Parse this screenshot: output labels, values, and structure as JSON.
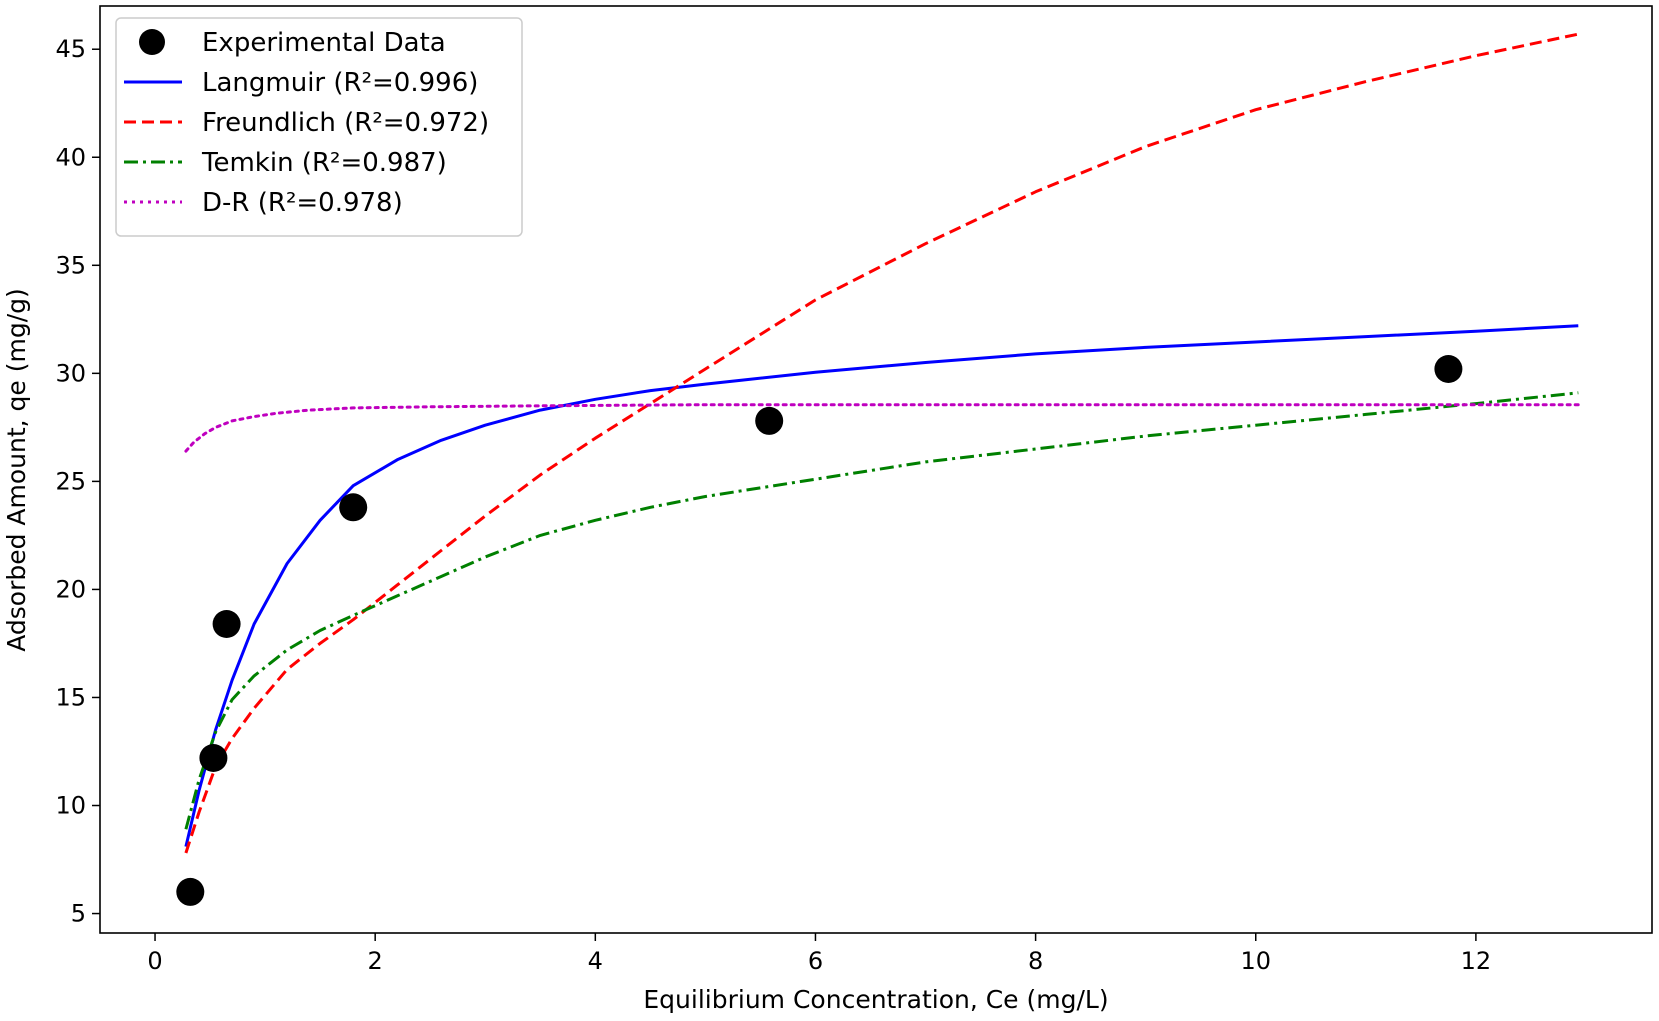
{
  "chart_data": {
    "type": "scatter",
    "title": "",
    "xlabel": "Equilibrium Concentration, Ce (mg/L)",
    "ylabel": "Adsorbed Amount, qe (mg/g)",
    "xlim": [
      -0.5,
      13.6
    ],
    "ylim": [
      4.1,
      47.0
    ],
    "xticks": [
      0,
      2,
      4,
      6,
      8,
      10,
      12
    ],
    "yticks": [
      5,
      10,
      15,
      20,
      25,
      30,
      35,
      40,
      45
    ],
    "grid": false,
    "legend_position": "upper-left",
    "scatter": {
      "name": "Experimental Data",
      "color": "#000000",
      "x": [
        0.32,
        0.53,
        0.65,
        1.8,
        5.58,
        11.75
      ],
      "y": [
        6.0,
        12.2,
        18.4,
        23.8,
        27.8,
        30.2
      ]
    },
    "series": [
      {
        "name": "Langmuir (R²=0.996)",
        "color": "#0000ff",
        "style": "solid",
        "x": [
          0.28,
          0.4,
          0.55,
          0.7,
          0.9,
          1.2,
          1.5,
          1.8,
          2.2,
          2.6,
          3.0,
          3.5,
          4.0,
          4.5,
          5.0,
          6.0,
          7.0,
          8.0,
          9.0,
          10.0,
          11.0,
          12.0,
          12.93
        ],
        "y": [
          8.1,
          10.7,
          13.5,
          15.8,
          18.4,
          21.2,
          23.2,
          24.8,
          26.0,
          26.9,
          27.6,
          28.3,
          28.8,
          29.2,
          29.5,
          30.05,
          30.5,
          30.9,
          31.2,
          31.45,
          31.7,
          31.95,
          32.2
        ]
      },
      {
        "name": "Freundlich (R²=0.972)",
        "color": "#ff0000",
        "style": "dashed",
        "x": [
          0.28,
          0.4,
          0.55,
          0.7,
          0.9,
          1.2,
          1.5,
          1.8,
          2.2,
          2.6,
          3.0,
          3.5,
          4.0,
          4.5,
          5.0,
          6.0,
          7.0,
          8.0,
          9.0,
          10.0,
          11.0,
          12.0,
          12.93
        ],
        "y": [
          7.8,
          9.7,
          11.8,
          13.1,
          14.5,
          16.3,
          17.5,
          18.6,
          20.2,
          21.8,
          23.4,
          25.3,
          27.0,
          28.6,
          30.2,
          33.4,
          36.0,
          38.4,
          40.5,
          42.2,
          43.5,
          44.7,
          45.7
        ]
      },
      {
        "name": "Temkin (R²=0.987)",
        "color": "#008000",
        "style": "dashdot",
        "x": [
          0.28,
          0.4,
          0.55,
          0.7,
          0.9,
          1.2,
          1.5,
          1.8,
          2.2,
          2.6,
          3.0,
          3.5,
          4.0,
          4.5,
          5.0,
          6.0,
          7.0,
          8.0,
          9.0,
          10.0,
          11.0,
          12.0,
          12.93
        ],
        "y": [
          8.9,
          11.2,
          13.4,
          14.9,
          16.0,
          17.2,
          18.1,
          18.8,
          19.7,
          20.6,
          21.5,
          22.5,
          23.2,
          23.8,
          24.3,
          25.1,
          25.9,
          26.5,
          27.1,
          27.6,
          28.1,
          28.6,
          29.1
        ]
      },
      {
        "name": "D-R (R²=0.978)",
        "color": "#bf00bf",
        "style": "dotted",
        "x": [
          0.28,
          0.35,
          0.45,
          0.55,
          0.7,
          0.9,
          1.1,
          1.4,
          1.8,
          2.5,
          3.5,
          5.0,
          7.0,
          9.0,
          11.0,
          12.93
        ],
        "y": [
          26.4,
          26.8,
          27.2,
          27.5,
          27.8,
          28.0,
          28.15,
          28.3,
          28.4,
          28.45,
          28.5,
          28.55,
          28.55,
          28.55,
          28.55,
          28.55
        ]
      }
    ]
  },
  "legend": {
    "items": [
      {
        "label": "Experimental Data",
        "kind": "marker",
        "color": "#000000"
      },
      {
        "label": "Langmuir (R²=0.996)",
        "kind": "line",
        "color": "#0000ff",
        "dash": ""
      },
      {
        "label": "Freundlich (R²=0.972)",
        "kind": "line",
        "color": "#ff0000",
        "dash": "12,6"
      },
      {
        "label": "Temkin (R²=0.987)",
        "kind": "line",
        "color": "#008000",
        "dash": "14,5,3,5"
      },
      {
        "label": "D-R (R²=0.978)",
        "kind": "line",
        "color": "#bf00bf",
        "dash": "3,5"
      }
    ]
  }
}
